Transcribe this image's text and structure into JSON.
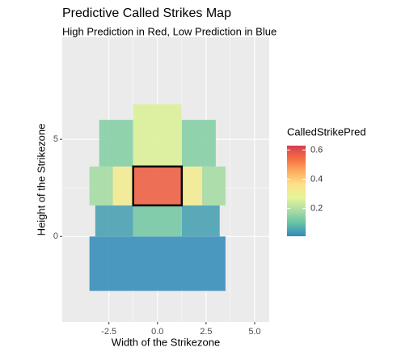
{
  "chart_data": {
    "type": "tile",
    "title": "Predictive Called Strikes Map",
    "subtitle": "High Prediction in Red, Low Prediction in Blue",
    "x_label": "Width of the Strikezone",
    "y_label": "Height of the Strikezone",
    "legend_title": "CalledStrikePred",
    "xlim": [
      -4.9,
      5.75
    ],
    "ylim": [
      -4.4,
      10.25
    ],
    "xticks": [
      -2.5,
      {
        "value": 0,
        "label": "0.0"
      },
      2.5,
      {
        "value": 5,
        "label": "5.0"
      }
    ],
    "yticks": [
      0,
      5
    ],
    "grid": true,
    "clim": [
      0.01,
      0.63
    ],
    "cticks": [
      0.2,
      0.4,
      0.6
    ],
    "colors": [
      "#3288bd",
      "#66c2a5",
      "#abdda4",
      "#e6f598",
      "#fee08b",
      "#fdae61",
      "#f46d43",
      "#d53e4f"
    ],
    "tiles": [
      {
        "x": [
          -3.5,
          3.5
        ],
        "y": [
          -2.8,
          0
        ],
        "value": 0.02
      },
      {
        "x": [
          -3.2,
          -1.25
        ],
        "y": [
          0,
          1.6
        ],
        "value": 0.05
      },
      {
        "x": [
          1.25,
          3.2
        ],
        "y": [
          0,
          1.6
        ],
        "value": 0.05
      },
      {
        "x": [
          -1.25,
          1.25
        ],
        "y": [
          0,
          1.6
        ],
        "value": 0.12
      },
      {
        "x": [
          -3.5,
          -2.3
        ],
        "y": [
          1.6,
          3.6
        ],
        "value": 0.18
      },
      {
        "x": [
          2.3,
          3.5
        ],
        "y": [
          1.6,
          3.6
        ],
        "value": 0.18
      },
      {
        "x": [
          -2.3,
          -1.25
        ],
        "y": [
          1.6,
          3.6
        ],
        "value": 0.32
      },
      {
        "x": [
          1.25,
          2.3
        ],
        "y": [
          1.6,
          3.6
        ],
        "value": 0.32
      },
      {
        "x": [
          -3,
          -1.25
        ],
        "y": [
          3.6,
          6
        ],
        "value": 0.14
      },
      {
        "x": [
          1.25,
          3
        ],
        "y": [
          3.6,
          6
        ],
        "value": 0.14
      },
      {
        "x": [
          -1.25,
          1.25
        ],
        "y": [
          3.6,
          6.8
        ],
        "value": 0.26
      },
      {
        "x": [
          -1.25,
          1.25
        ],
        "y": [
          1.6,
          3.6
        ],
        "value": 0.56
      }
    ],
    "strike_zone": {
      "x": [
        -1.25,
        1.25
      ],
      "y": [
        1.6,
        3.6
      ]
    }
  }
}
